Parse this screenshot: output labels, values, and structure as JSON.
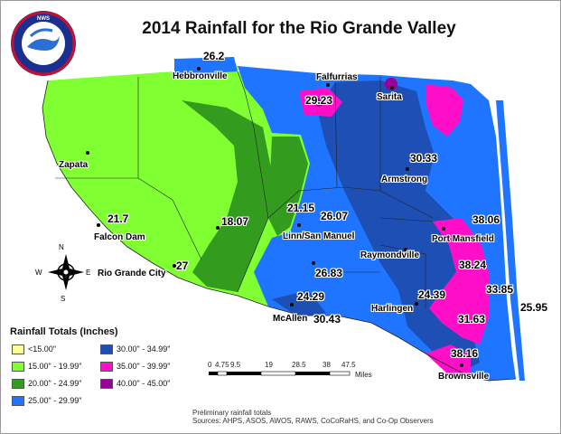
{
  "title": "2014 Rainfall for the Rio Grande Valley",
  "logo_text": "NATIONAL WEATHER SERVICE",
  "colors": {
    "c_lt15": "#ffff99",
    "c_15_20": "#80ff33",
    "c_20_25": "#339b1e",
    "c_25_30": "#1f75ff",
    "c_30_35": "#1e4fb4",
    "c_35_40": "#ff0fc8",
    "c_40_45": "#990099",
    "water": "#ffffff"
  },
  "places": [
    {
      "name": "Hebbronville"
    },
    {
      "name": "Falfurrias"
    },
    {
      "name": "Sarita"
    },
    {
      "name": "Zapata"
    },
    {
      "name": "Armstrong"
    },
    {
      "name": "Falcon Dam"
    },
    {
      "name": "Linn/San Manuel"
    },
    {
      "name": "Port Mansfield"
    },
    {
      "name": "Raymondville"
    },
    {
      "name": "Rio Grande City"
    },
    {
      "name": "McAllen"
    },
    {
      "name": "Harlingen"
    },
    {
      "name": "Brownsville"
    }
  ],
  "values": [
    "26.2",
    "29.23",
    "30.33",
    "21.7",
    "18.07",
    "21.15",
    "26.07",
    "38.06",
    "27",
    "26.83",
    "38.24",
    "24.29",
    "24.39",
    "33.85",
    "25.95",
    "30.43",
    "31.63",
    "38.16"
  ],
  "compass": {
    "n": "N",
    "s": "S",
    "e": "E",
    "w": "W"
  },
  "legend": {
    "title": "Rainfall Totals (Inches)",
    "items": [
      {
        "label": "<15.00\"",
        "color": "#ffff99"
      },
      {
        "label": "15.00\" - 19.99\"",
        "color": "#80ff33"
      },
      {
        "label": "20.00\" - 24.99\"",
        "color": "#339b1e"
      },
      {
        "label": "25.00\" - 29.99\"",
        "color": "#1f75ff"
      },
      {
        "label": "30.00\" - 34.99\"",
        "color": "#1e4fb4"
      },
      {
        "label": "35.00\" - 39.99\"",
        "color": "#ff0fc8"
      },
      {
        "label": "40.00\" - 45.00\"",
        "color": "#990099"
      }
    ]
  },
  "scale": {
    "ticks": [
      "0",
      "4.75",
      "9.5",
      "19",
      "28.5",
      "38",
      "47.5"
    ],
    "unit": "Miles"
  },
  "notes": {
    "line1": "Preliminary rainfall totals",
    "line2": "Sources: AHPS, ASOS, AWOS, RAWS, CoCoRaHS, and Co-Op Observers"
  }
}
